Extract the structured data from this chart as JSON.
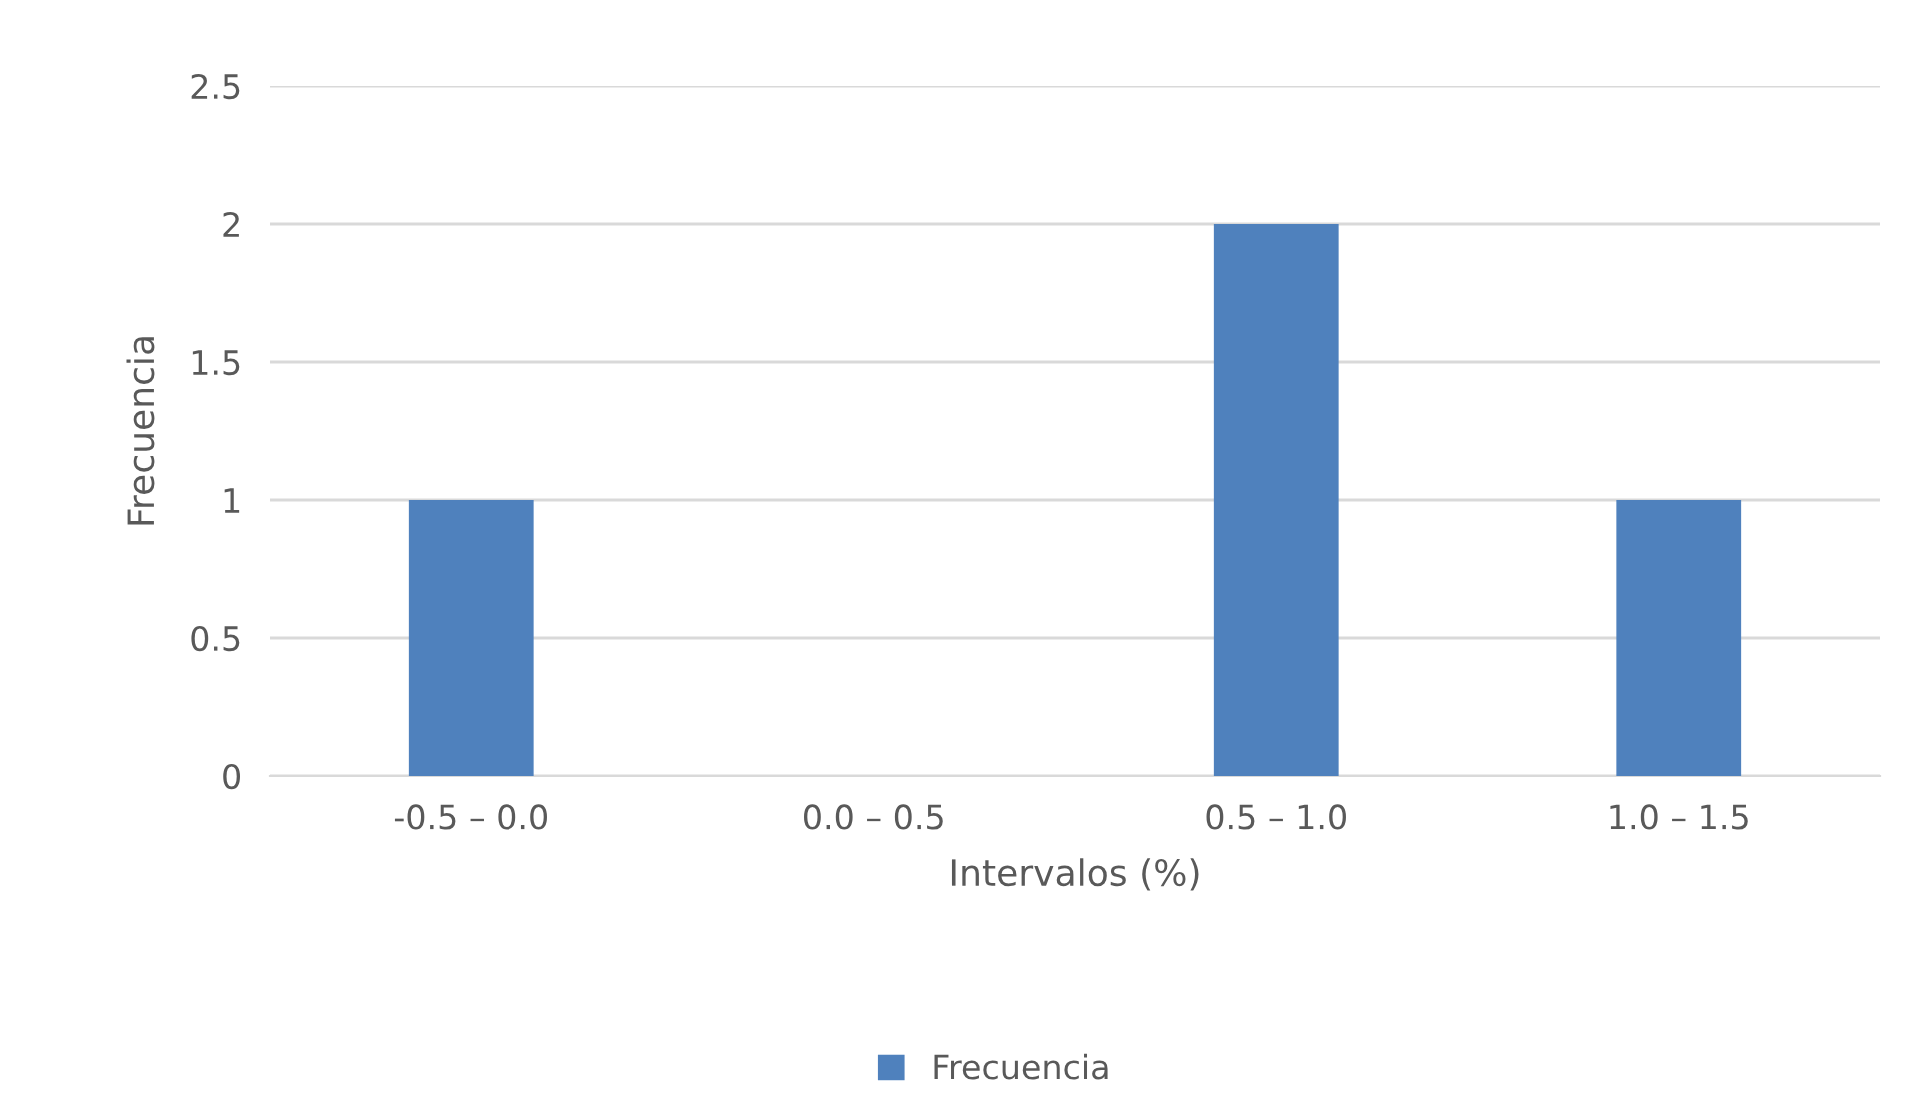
{
  "chart_data": {
    "type": "bar",
    "xlabel": "Intervalos (%)",
    "ylabel": "Frecuencia",
    "categories": [
      "-0.5 – 0.0",
      "0.0 – 0.5",
      "0.5 – 1.0",
      "1.0 – 1.5"
    ],
    "series": [
      {
        "name": "Frecuencia",
        "color": "#4f81bd",
        "values": [
          1,
          0,
          2,
          1
        ]
      }
    ],
    "ylim": [
      0,
      2.5
    ],
    "yticks": [
      0,
      0.5,
      1,
      1.5,
      2,
      2.5
    ],
    "grid": "y",
    "legend": "bottom"
  }
}
